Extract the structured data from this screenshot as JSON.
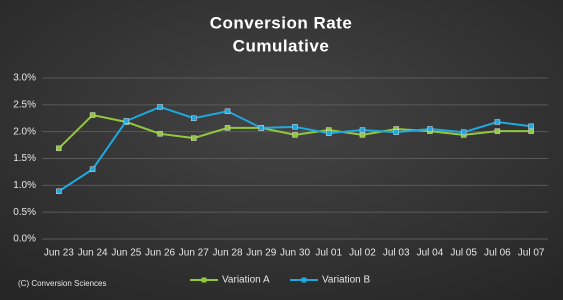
{
  "chart_data": {
    "type": "line",
    "title": "Conversion Rate",
    "subtitle": "Cumulative",
    "source": "(C) Conversion Sciences",
    "categories": [
      "Jun 23",
      "Jun 24",
      "Jun 25",
      "Jun 26",
      "Jun 27",
      "Jun 28",
      "Jun 29",
      "Jun 30",
      "Jul 01",
      "Jul 02",
      "Jul 03",
      "Jul 04",
      "Jul 05",
      "Jul 06",
      "Jul 07"
    ],
    "series": [
      {
        "name": "Variation A",
        "color": "#92c83e",
        "values": [
          1.69,
          2.31,
          2.18,
          1.96,
          1.88,
          2.07,
          2.07,
          1.94,
          2.03,
          1.94,
          2.05,
          2.01,
          1.94,
          2.01,
          2.01
        ]
      },
      {
        "name": "Variation B",
        "color": "#1fa8e0",
        "values": [
          0.89,
          1.3,
          2.2,
          2.46,
          2.25,
          2.38,
          2.07,
          2.09,
          1.97,
          2.03,
          1.99,
          2.05,
          1.99,
          2.18,
          2.1
        ]
      }
    ],
    "ylim": [
      0,
      3
    ],
    "yticks": [
      {
        "value": 0,
        "label": "0.0%"
      },
      {
        "value": 0.5,
        "label": "0.5%"
      },
      {
        "value": 1,
        "label": "1.0%"
      },
      {
        "value": 1.5,
        "label": "1.5%"
      },
      {
        "value": 2,
        "label": "2.0%"
      },
      {
        "value": 2.5,
        "label": "2.5%"
      },
      {
        "value": 3,
        "label": "3.0%"
      }
    ],
    "grid": true
  }
}
